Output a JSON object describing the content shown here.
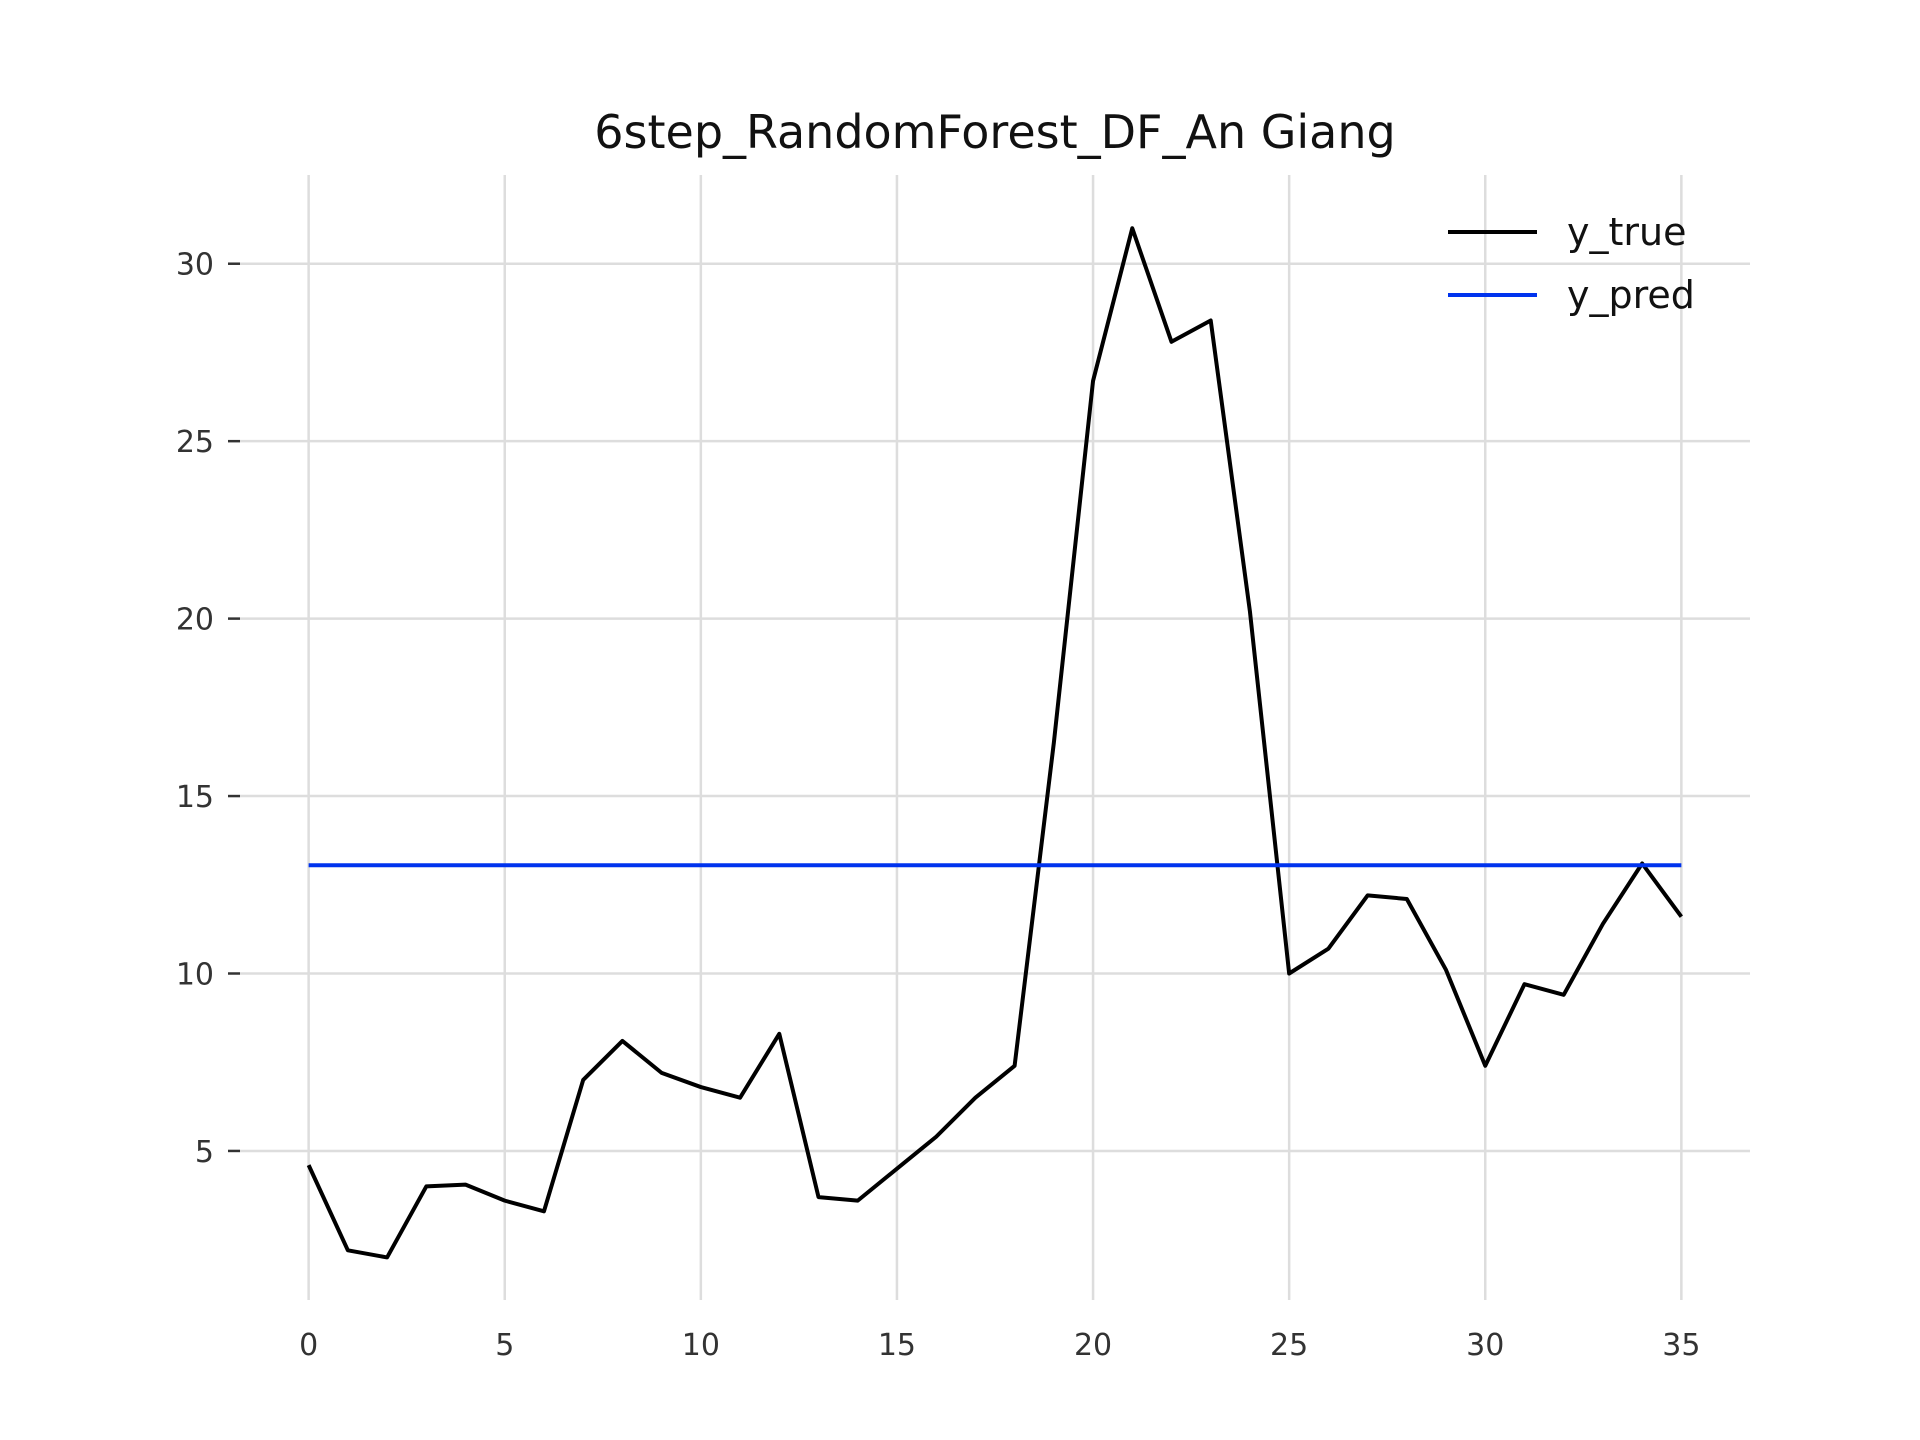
{
  "chart_data": {
    "type": "line",
    "title": "6step_RandomForest_DF_An Giang",
    "xlabel": "",
    "ylabel": "",
    "xlim": [
      -1.75,
      36.75
    ],
    "ylim": [
      0.8,
      32.5
    ],
    "xticks": [
      0,
      5,
      10,
      15,
      20,
      25,
      30,
      35
    ],
    "yticks": [
      5,
      10,
      15,
      20,
      25,
      30
    ],
    "grid": true,
    "legend_position": "top-right",
    "x": [
      0,
      1,
      2,
      3,
      4,
      5,
      6,
      7,
      8,
      9,
      10,
      11,
      12,
      13,
      14,
      15,
      16,
      17,
      18,
      19,
      20,
      21,
      22,
      23,
      24,
      25,
      26,
      27,
      28,
      29,
      30,
      31,
      32,
      33,
      34,
      35
    ],
    "series": [
      {
        "name": "y_true",
        "color": "#000000",
        "values": [
          4.6,
          2.2,
          2.0,
          4.0,
          4.05,
          3.6,
          3.3,
          7.0,
          8.1,
          7.2,
          6.8,
          6.5,
          8.3,
          3.7,
          3.6,
          4.5,
          5.4,
          6.5,
          7.4,
          16.5,
          26.7,
          31.0,
          27.8,
          28.4,
          20.2,
          10.0,
          10.7,
          12.2,
          12.1,
          10.1,
          7.4,
          9.7,
          9.4,
          11.4,
          13.1,
          11.6
        ]
      },
      {
        "name": "y_pred",
        "color": "#0033ee",
        "values": [
          13.05,
          13.05,
          13.05,
          13.05,
          13.05,
          13.05,
          13.05,
          13.05,
          13.05,
          13.05,
          13.05,
          13.05,
          13.05,
          13.05,
          13.05,
          13.05,
          13.05,
          13.05,
          13.05,
          13.05,
          13.05,
          13.05,
          13.05,
          13.05,
          13.05,
          13.05,
          13.05,
          13.05,
          13.05,
          13.05,
          13.05,
          13.05,
          13.05,
          13.05,
          13.05,
          13.05
        ]
      }
    ]
  }
}
